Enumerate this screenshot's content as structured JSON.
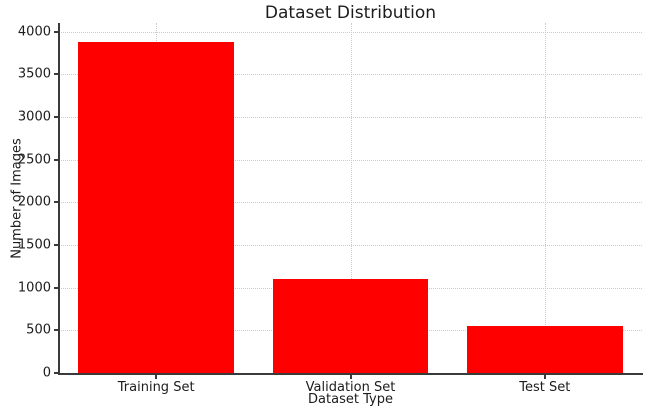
{
  "chart_data": {
    "type": "bar",
    "title": "Dataset Distribution",
    "xlabel": "Dataset Type",
    "ylabel": "Number of Images",
    "categories": [
      "Training Set",
      "Validation Set",
      "Test Set"
    ],
    "values": [
      3880,
      1100,
      550
    ],
    "yticks": [
      0,
      500,
      1000,
      1500,
      2000,
      2500,
      3000,
      3500,
      4000
    ],
    "ylim": [
      0,
      4100
    ],
    "bar_color": "#ff0000",
    "grid": "on",
    "grid_style": "dotted",
    "grid_color": "#cccccc",
    "axis_color": "#3a3a3a",
    "text_color": "#1c1c1c",
    "background_color": "#ffffff",
    "legend_position": "none"
  }
}
